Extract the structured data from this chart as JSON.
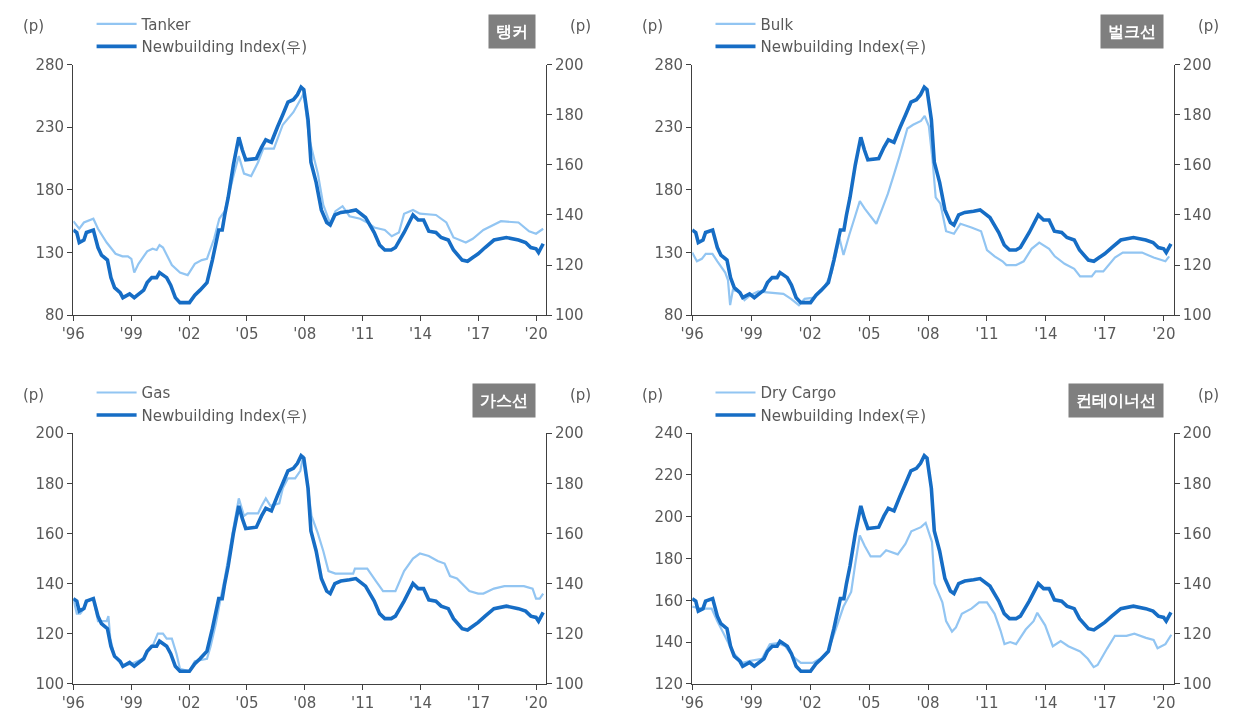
{
  "chart_data": [
    {
      "type": "line",
      "title": "탱커",
      "ylabel": "(p)",
      "y2label": "(p)",
      "legend": "top left",
      "grid": false,
      "xlim": [
        1996,
        2020.5
      ],
      "xticks": [
        {
          "value": 1996,
          "label": "'96"
        },
        {
          "value": 1999,
          "label": "'99"
        },
        {
          "value": 2002,
          "label": "'02"
        },
        {
          "value": 2005,
          "label": "'05"
        },
        {
          "value": 2008,
          "label": "'08"
        },
        {
          "value": 2011,
          "label": "'11"
        },
        {
          "value": 2014,
          "label": "'14"
        },
        {
          "value": 2017,
          "label": "'17"
        },
        {
          "value": 2020,
          "label": "'20"
        }
      ],
      "ylim": [
        80,
        280
      ],
      "yticks": [
        80,
        130,
        180,
        230,
        280
      ],
      "y2lim": [
        100,
        200
      ],
      "y2ticks": [
        100,
        120,
        140,
        160,
        180,
        200
      ],
      "series": [
        {
          "name": "Tanker",
          "color": "#92c5f2",
          "x": [
            1996.0,
            1996.31,
            1996.55,
            1997.04,
            1997.28,
            1997.73,
            1998.19,
            1998.55,
            1998.83,
            1999.01,
            1999.16,
            1999.38,
            1999.83,
            2000.11,
            2000.32,
            2000.47,
            2000.65,
            2001.11,
            2001.53,
            2001.93,
            2002.3,
            2002.66,
            2002.93,
            2003.3,
            2003.57,
            2003.85,
            2004.03,
            2004.3,
            2004.58,
            2004.85,
            2005.22,
            2005.58,
            2005.85,
            2006.4,
            2006.86,
            2007.41,
            2007.77,
            2007.95,
            2008.23,
            2008.5,
            2008.68,
            2008.96,
            2009.32,
            2009.59,
            2009.96,
            2010.32,
            2010.87,
            2011.24,
            2011.6,
            2012.15,
            2012.51,
            2012.88,
            2013.15,
            2013.61,
            2013.97,
            2014.8,
            2015.34,
            2015.71,
            2016.35,
            2016.71,
            2017.26,
            2018.17,
            2019.08,
            2019.63,
            2019.99,
            2020.36
          ],
          "values": [
            155,
            149,
            154,
            157,
            149,
            138,
            129,
            127,
            127,
            125,
            114,
            121,
            131,
            133,
            132,
            136,
            134,
            120,
            114,
            112,
            121,
            124,
            125,
            141,
            157,
            163,
            174,
            191,
            207,
            193,
            191,
            202,
            213,
            213,
            232,
            242,
            252,
            257,
            221,
            204,
            193,
            168,
            153,
            163,
            167,
            159,
            157,
            154,
            150,
            148,
            143,
            146,
            161,
            164,
            161,
            160,
            154,
            142,
            138,
            141,
            148,
            155,
            154,
            147,
            145,
            149
          ]
        },
        {
          "name": "Newbuilding Index(우)",
          "color": "#166dc5",
          "axis": "y2",
          "x": [
            1996.0,
            1996.18,
            1996.31,
            1996.55,
            1996.68,
            1997.04,
            1997.28,
            1997.46,
            1997.77,
            1997.95,
            1998.14,
            1998.43,
            1998.57,
            1998.92,
            1999.16,
            1999.65,
            1999.83,
            2000.07,
            2000.32,
            2000.47,
            2000.84,
            2001.05,
            2001.29,
            2001.53,
            2002.02,
            2002.3,
            2002.57,
            2002.93,
            2003.21,
            2003.54,
            2003.72,
            2003.85,
            2004.03,
            2004.3,
            2004.58,
            2004.76,
            2004.94,
            2005.49,
            2005.76,
            2005.98,
            2006.27,
            2006.58,
            2006.86,
            2007.13,
            2007.41,
            2007.62,
            2007.81,
            2007.95,
            2008.17,
            2008.32,
            2008.59,
            2008.86,
            2009.14,
            2009.32,
            2009.56,
            2009.87,
            2010.32,
            2010.65,
            2011.15,
            2011.6,
            2011.88,
            2012.15,
            2012.48,
            2012.7,
            2013.15,
            2013.61,
            2013.88,
            2014.16,
            2014.43,
            2014.8,
            2015.07,
            2015.44,
            2015.71,
            2016.16,
            2016.44,
            2016.71,
            2016.99,
            2017.35,
            2017.81,
            2018.45,
            2019.08,
            2019.45,
            2019.72,
            2019.99,
            2020.12,
            2020.36
          ],
          "values": [
            134,
            133,
            129,
            130,
            133,
            134,
            127,
            124,
            122,
            115,
            111,
            109,
            107,
            108.5,
            107,
            110,
            113,
            115,
            115,
            117,
            115,
            112,
            107,
            105,
            105,
            108,
            110,
            113,
            122,
            134,
            134,
            140,
            147,
            160,
            171,
            166,
            162,
            162.5,
            167,
            170,
            169,
            175,
            180,
            185,
            186,
            188,
            191,
            190,
            178,
            161,
            153,
            142,
            137,
            136,
            140,
            141,
            141.5,
            142,
            139,
            133,
            128,
            126,
            126,
            127,
            133,
            140,
            138,
            138,
            133.5,
            133,
            131,
            130,
            126,
            122,
            121.5,
            123,
            124.5,
            127,
            130,
            131,
            130,
            129,
            127,
            126.5,
            125,
            128.5
          ]
        }
      ]
    },
    {
      "type": "line",
      "title": "벌크선",
      "ylabel": "(p)",
      "y2label": "(p)",
      "legend": "top left",
      "grid": false,
      "xlim": [
        1996,
        2020.5
      ],
      "xticks": [
        {
          "value": 1996,
          "label": "'96"
        },
        {
          "value": 1999,
          "label": "'99"
        },
        {
          "value": 2002,
          "label": "'02"
        },
        {
          "value": 2005,
          "label": "'05"
        },
        {
          "value": 2008,
          "label": "'08"
        },
        {
          "value": 2011,
          "label": "'11"
        },
        {
          "value": 2014,
          "label": "'14"
        },
        {
          "value": 2017,
          "label": "'17"
        },
        {
          "value": 2020,
          "label": "'20"
        }
      ],
      "ylim": [
        80,
        280
      ],
      "yticks": [
        80,
        130,
        180,
        230,
        280
      ],
      "y2lim": [
        100,
        200
      ],
      "y2ticks": [
        100,
        120,
        140,
        160,
        180,
        200
      ],
      "series": [
        {
          "name": "Bulk",
          "color": "#92c5f2",
          "x": [
            1996.0,
            1996.24,
            1996.49,
            1996.69,
            1997.03,
            1997.28,
            1997.68,
            1997.82,
            1997.93,
            1998.07,
            1998.37,
            1998.66,
            1998.96,
            1999.36,
            1999.95,
            2000.64,
            2001.03,
            2001.43,
            2001.72,
            2002.22,
            2002.71,
            2003.1,
            2003.5,
            2003.7,
            2003.99,
            2004.29,
            2004.53,
            2004.78,
            2005.37,
            2005.67,
            2005.96,
            2006.26,
            2006.55,
            2006.95,
            2007.24,
            2007.64,
            2007.83,
            2008.04,
            2008.23,
            2008.39,
            2008.63,
            2008.92,
            2009.32,
            2009.65,
            2010.21,
            2010.7,
            2011.0,
            2011.39,
            2011.79,
            2011.99,
            2012.48,
            2012.87,
            2013.27,
            2013.66,
            2014.16,
            2014.45,
            2014.95,
            2015.44,
            2015.74,
            2016.33,
            2016.53,
            2016.92,
            2017.51,
            2017.91,
            2018.89,
            2019.48,
            2020.08,
            2020.27
          ],
          "values": [
            130,
            123,
            125,
            129,
            129,
            123,
            114,
            108,
            88,
            100,
            99,
            92,
            96,
            99,
            98,
            97,
            93,
            88,
            93,
            94,
            102,
            114,
            141,
            128,
            144,
            159,
            171,
            165,
            153,
            165,
            177,
            192,
            207,
            229,
            232,
            235,
            239,
            231,
            204,
            174,
            169,
            147,
            145,
            153,
            150,
            147,
            132,
            127,
            123,
            120,
            120,
            123,
            133,
            138,
            133,
            127,
            121,
            117,
            111,
            111,
            115,
            115,
            126,
            130,
            130,
            126,
            123,
            127
          ]
        },
        {
          "name": "Newbuilding Index(우)",
          "color": "#166dc5",
          "axis": "y2",
          "x": [
            1996.0,
            1996.18,
            1996.31,
            1996.55,
            1996.68,
            1997.04,
            1997.28,
            1997.46,
            1997.77,
            1997.95,
            1998.14,
            1998.43,
            1998.57,
            1998.92,
            1999.16,
            1999.65,
            1999.83,
            2000.07,
            2000.32,
            2000.47,
            2000.84,
            2001.05,
            2001.29,
            2001.53,
            2002.02,
            2002.3,
            2002.57,
            2002.93,
            2003.21,
            2003.54,
            2003.72,
            2003.85,
            2004.03,
            2004.3,
            2004.58,
            2004.76,
            2004.94,
            2005.49,
            2005.76,
            2005.98,
            2006.27,
            2006.58,
            2006.86,
            2007.13,
            2007.41,
            2007.62,
            2007.81,
            2007.95,
            2008.17,
            2008.32,
            2008.59,
            2008.86,
            2009.14,
            2009.32,
            2009.56,
            2009.87,
            2010.32,
            2010.65,
            2011.15,
            2011.6,
            2011.88,
            2012.15,
            2012.48,
            2012.7,
            2013.15,
            2013.61,
            2013.88,
            2014.16,
            2014.43,
            2014.8,
            2015.07,
            2015.44,
            2015.71,
            2016.16,
            2016.44,
            2016.71,
            2016.99,
            2017.35,
            2017.81,
            2018.45,
            2019.08,
            2019.45,
            2019.72,
            2019.99,
            2020.12,
            2020.36
          ],
          "values": [
            134,
            133,
            129,
            130,
            133,
            134,
            127,
            124,
            122,
            115,
            111,
            109,
            107,
            108.5,
            107,
            110,
            113,
            115,
            115,
            117,
            115,
            112,
            107,
            105,
            105,
            108,
            110,
            113,
            122,
            134,
            134,
            140,
            147,
            160,
            171,
            166,
            162,
            162.5,
            167,
            170,
            169,
            175,
            180,
            185,
            186,
            188,
            191,
            190,
            178,
            161,
            153,
            142,
            137,
            136,
            140,
            141,
            141.5,
            142,
            139,
            133,
            128,
            126,
            126,
            127,
            133,
            140,
            138,
            138,
            133.5,
            133,
            131,
            130,
            126,
            122,
            121.5,
            123,
            124.5,
            127,
            130,
            131,
            130,
            129,
            127,
            126.5,
            125,
            128.5
          ]
        }
      ]
    },
    {
      "type": "line",
      "title": "가스선",
      "ylabel": "(p)",
      "y2label": "(p)",
      "legend": "top left",
      "grid": false,
      "xlim": [
        1996,
        2020.5
      ],
      "xticks": [
        {
          "value": 1996,
          "label": "'96"
        },
        {
          "value": 1999,
          "label": "'99"
        },
        {
          "value": 2002,
          "label": "'02"
        },
        {
          "value": 2005,
          "label": "'05"
        },
        {
          "value": 2008,
          "label": "'08"
        },
        {
          "value": 2011,
          "label": "'11"
        },
        {
          "value": 2014,
          "label": "'14"
        },
        {
          "value": 2017,
          "label": "'17"
        },
        {
          "value": 2020,
          "label": "'20"
        }
      ],
      "ylim": [
        100,
        200
      ],
      "yticks": [
        100,
        120,
        140,
        160,
        180,
        200
      ],
      "y2lim": [
        100,
        200
      ],
      "y2ticks": [
        100,
        120,
        140,
        160,
        180,
        200
      ],
      "series": [
        {
          "name": "Gas",
          "color": "#92c5f2",
          "x": [
            1996.0,
            1996.18,
            1996.36,
            1996.55,
            1996.68,
            1997.04,
            1997.28,
            1997.73,
            1997.82,
            1997.92,
            1998.14,
            1998.57,
            1999.01,
            1999.65,
            1999.83,
            2000.11,
            2000.38,
            2000.65,
            2000.84,
            2001.11,
            2001.35,
            2001.53,
            2002.02,
            2002.3,
            2002.93,
            2003.12,
            2003.39,
            2003.66,
            2003.85,
            2004.03,
            2004.3,
            2004.58,
            2004.85,
            2005.03,
            2005.58,
            2005.76,
            2005.98,
            2006.22,
            2006.68,
            2006.86,
            2007.13,
            2007.5,
            2007.77,
            2007.92,
            2008.14,
            2008.35,
            2008.68,
            2008.96,
            2009.23,
            2009.59,
            2009.87,
            2010.51,
            2010.6,
            2011.24,
            2011.69,
            2012.06,
            2012.7,
            2013.15,
            2013.61,
            2013.97,
            2014.43,
            2014.89,
            2015.25,
            2015.53,
            2015.89,
            2016.53,
            2016.99,
            2017.26,
            2017.81,
            2018.35,
            2019.36,
            2019.81,
            2019.99,
            2020.18,
            2020.36
          ],
          "values": [
            134,
            128,
            128,
            130,
            133,
            134,
            125,
            125,
            127,
            118,
            111,
            107,
            108,
            110,
            113,
            115,
            120,
            120,
            118,
            118,
            112,
            106,
            105,
            109,
            110,
            115,
            124,
            135,
            142,
            150,
            162,
            174,
            167,
            168,
            168,
            171,
            174,
            171,
            172,
            178,
            182,
            182,
            185,
            191,
            180,
            167,
            160,
            153,
            145,
            144,
            144,
            144,
            146,
            146,
            141,
            137,
            137,
            145,
            150,
            152,
            151,
            149,
            148,
            143,
            142,
            137,
            136,
            136,
            138,
            139,
            139,
            138,
            134,
            134,
            136
          ]
        },
        {
          "name": "Newbuilding Index(우)",
          "color": "#166dc5",
          "axis": "y2",
          "x": [
            1996.0,
            1996.18,
            1996.31,
            1996.55,
            1996.68,
            1997.04,
            1997.28,
            1997.46,
            1997.77,
            1997.95,
            1998.14,
            1998.43,
            1998.57,
            1998.92,
            1999.16,
            1999.65,
            1999.83,
            2000.07,
            2000.32,
            2000.47,
            2000.84,
            2001.05,
            2001.29,
            2001.53,
            2002.02,
            2002.3,
            2002.57,
            2002.93,
            2003.21,
            2003.54,
            2003.72,
            2003.85,
            2004.03,
            2004.3,
            2004.58,
            2004.76,
            2004.94,
            2005.49,
            2005.76,
            2005.98,
            2006.27,
            2006.58,
            2006.86,
            2007.13,
            2007.41,
            2007.62,
            2007.81,
            2007.95,
            2008.17,
            2008.32,
            2008.59,
            2008.86,
            2009.14,
            2009.32,
            2009.56,
            2009.87,
            2010.32,
            2010.65,
            2011.15,
            2011.6,
            2011.88,
            2012.15,
            2012.48,
            2012.7,
            2013.15,
            2013.61,
            2013.88,
            2014.16,
            2014.43,
            2014.8,
            2015.07,
            2015.44,
            2015.71,
            2016.16,
            2016.44,
            2016.71,
            2016.99,
            2017.35,
            2017.81,
            2018.45,
            2019.08,
            2019.45,
            2019.72,
            2019.99,
            2020.12,
            2020.36
          ],
          "values": [
            134,
            133,
            129,
            130,
            133,
            134,
            127,
            124,
            122,
            115,
            111,
            109,
            107,
            108.5,
            107,
            110,
            113,
            115,
            115,
            117,
            115,
            112,
            107,
            105,
            105,
            108,
            110,
            113,
            122,
            134,
            134,
            140,
            147,
            160,
            171,
            166,
            162,
            162.5,
            167,
            170,
            169,
            175,
            180,
            185,
            186,
            188,
            191,
            190,
            178,
            161,
            153,
            142,
            137,
            136,
            140,
            141,
            141.5,
            142,
            139,
            133,
            128,
            126,
            126,
            127,
            133,
            140,
            138,
            138,
            133.5,
            133,
            131,
            130,
            126,
            122,
            121.5,
            123,
            124.5,
            127,
            130,
            131,
            130,
            129,
            127,
            126.5,
            125,
            128.5
          ]
        }
      ]
    },
    {
      "type": "line",
      "title": "컨테이너선",
      "ylabel": "(p)",
      "y2label": "(p)",
      "legend": "top left",
      "grid": false,
      "xlim": [
        1996,
        2020.5
      ],
      "xticks": [
        {
          "value": 1996,
          "label": "'96"
        },
        {
          "value": 1999,
          "label": "'99"
        },
        {
          "value": 2002,
          "label": "'02"
        },
        {
          "value": 2005,
          "label": "'05"
        },
        {
          "value": 2008,
          "label": "'08"
        },
        {
          "value": 2011,
          "label": "'11"
        },
        {
          "value": 2014,
          "label": "'14"
        },
        {
          "value": 2017,
          "label": "'17"
        },
        {
          "value": 2020,
          "label": "'20"
        }
      ],
      "ylim": [
        120,
        240
      ],
      "yticks": [
        120,
        140,
        160,
        180,
        200,
        220,
        240
      ],
      "y2lim": [
        100,
        200
      ],
      "y2ticks": [
        100,
        120,
        140,
        160,
        180,
        200
      ],
      "series": [
        {
          "name": "Dry Cargo",
          "color": "#92c5f2",
          "x": [
            1996.0,
            1996.49,
            1996.99,
            1997.28,
            1997.58,
            1997.87,
            1998.17,
            1998.57,
            1998.96,
            1999.55,
            1999.95,
            2000.34,
            2000.74,
            2001.13,
            2001.53,
            2002.12,
            2002.51,
            2002.91,
            2003.3,
            2003.7,
            2004.09,
            2004.29,
            2004.53,
            2004.78,
            2005.08,
            2005.57,
            2005.87,
            2006.46,
            2006.85,
            2007.15,
            2007.64,
            2007.88,
            2008.2,
            2008.33,
            2008.73,
            2008.92,
            2009.22,
            2009.42,
            2009.72,
            2010.21,
            2010.6,
            2011.0,
            2011.39,
            2011.69,
            2011.89,
            2012.18,
            2012.48,
            2012.97,
            2013.37,
            2013.56,
            2013.96,
            2014.35,
            2014.75,
            2015.14,
            2015.74,
            2016.13,
            2016.43,
            2016.63,
            2017.12,
            2017.51,
            2018.1,
            2018.5,
            2019.09,
            2019.48,
            2019.68,
            2020.08,
            2020.38
          ],
          "values": [
            157,
            156,
            156,
            150,
            144.5,
            139,
            134,
            130,
            131,
            132,
            139,
            139.5,
            138,
            133,
            130,
            130,
            132,
            135.5,
            146,
            157,
            164,
            177,
            191,
            186,
            181,
            181,
            184,
            182,
            187,
            193,
            195,
            197,
            188,
            168,
            159,
            150,
            145,
            147,
            153.5,
            156,
            159,
            159,
            153.5,
            145.5,
            139,
            140,
            139,
            146,
            150,
            154,
            148,
            138,
            140.5,
            138,
            135.5,
            132,
            128,
            129,
            137,
            143,
            143,
            144,
            142,
            141,
            137,
            139,
            143.5
          ]
        },
        {
          "name": "Newbuilding Index(우)",
          "color": "#166dc5",
          "axis": "y2",
          "x": [
            1996.0,
            1996.18,
            1996.31,
            1996.55,
            1996.68,
            1997.04,
            1997.28,
            1997.46,
            1997.77,
            1997.95,
            1998.14,
            1998.43,
            1998.57,
            1998.92,
            1999.16,
            1999.65,
            1999.83,
            2000.07,
            2000.32,
            2000.47,
            2000.84,
            2001.05,
            2001.29,
            2001.53,
            2002.02,
            2002.3,
            2002.57,
            2002.93,
            2003.21,
            2003.54,
            2003.72,
            2003.85,
            2004.03,
            2004.3,
            2004.58,
            2004.76,
            2004.94,
            2005.49,
            2005.76,
            2005.98,
            2006.27,
            2006.58,
            2006.86,
            2007.13,
            2007.41,
            2007.62,
            2007.81,
            2007.95,
            2008.17,
            2008.32,
            2008.59,
            2008.86,
            2009.14,
            2009.32,
            2009.56,
            2009.87,
            2010.32,
            2010.65,
            2011.15,
            2011.6,
            2011.88,
            2012.15,
            2012.48,
            2012.7,
            2013.15,
            2013.61,
            2013.88,
            2014.16,
            2014.43,
            2014.8,
            2015.07,
            2015.44,
            2015.71,
            2016.16,
            2016.44,
            2016.71,
            2016.99,
            2017.35,
            2017.81,
            2018.45,
            2019.08,
            2019.45,
            2019.72,
            2019.99,
            2020.12,
            2020.36
          ],
          "values": [
            134,
            133,
            129,
            130,
            133,
            134,
            127,
            124,
            122,
            115,
            111,
            109,
            107,
            108.5,
            107,
            110,
            113,
            115,
            115,
            117,
            115,
            112,
            107,
            105,
            105,
            108,
            110,
            113,
            122,
            134,
            134,
            140,
            147,
            160,
            171,
            166,
            162,
            162.5,
            167,
            170,
            169,
            175,
            180,
            185,
            186,
            188,
            191,
            190,
            178,
            161,
            153,
            142,
            137,
            136,
            140,
            141,
            141.5,
            142,
            139,
            133,
            128,
            126,
            126,
            127,
            133,
            140,
            138,
            138,
            133.5,
            133,
            131,
            130,
            126,
            122,
            121.5,
            123,
            124.5,
            127,
            130,
            131,
            130,
            129,
            127,
            126.5,
            125,
            128.5
          ]
        }
      ]
    }
  ]
}
